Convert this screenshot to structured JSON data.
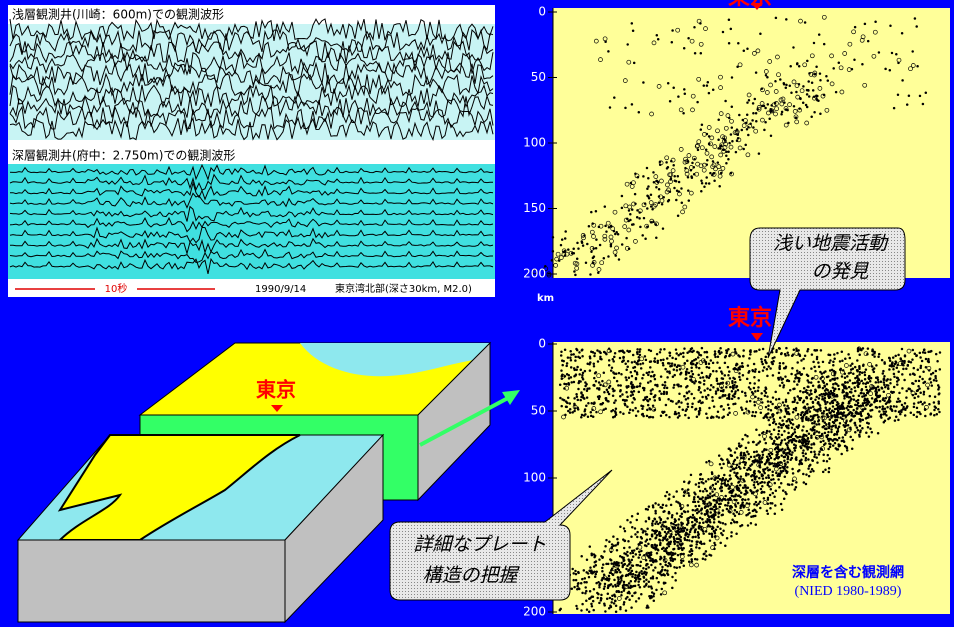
{
  "waveforms": {
    "shallow_title": "浅層観測井(川崎：600m)での観測波形",
    "deep_title": "深層観測井(府中：2.750m)での観測波形",
    "scale": "10秒",
    "date": "1990/9/14",
    "event": "東京湾北部(深さ30km, M2.0)"
  },
  "panels": [
    {
      "ticks": [
        0,
        50,
        100,
        150,
        200
      ],
      "unit": "km",
      "marker": "東京"
    },
    {
      "ticks": [
        0,
        50,
        100,
        150,
        200
      ],
      "marker": "東京"
    }
  ],
  "block": {
    "marker": "東京"
  },
  "callouts": [
    {
      "lines": [
        "浅い地震活動",
        "の発見"
      ]
    },
    {
      "lines": [
        "詳細なプレート",
        "構造の把握"
      ]
    }
  ],
  "network": {
    "title": "深層を含む観測網",
    "source": "(NIED 1980-1989)"
  }
}
